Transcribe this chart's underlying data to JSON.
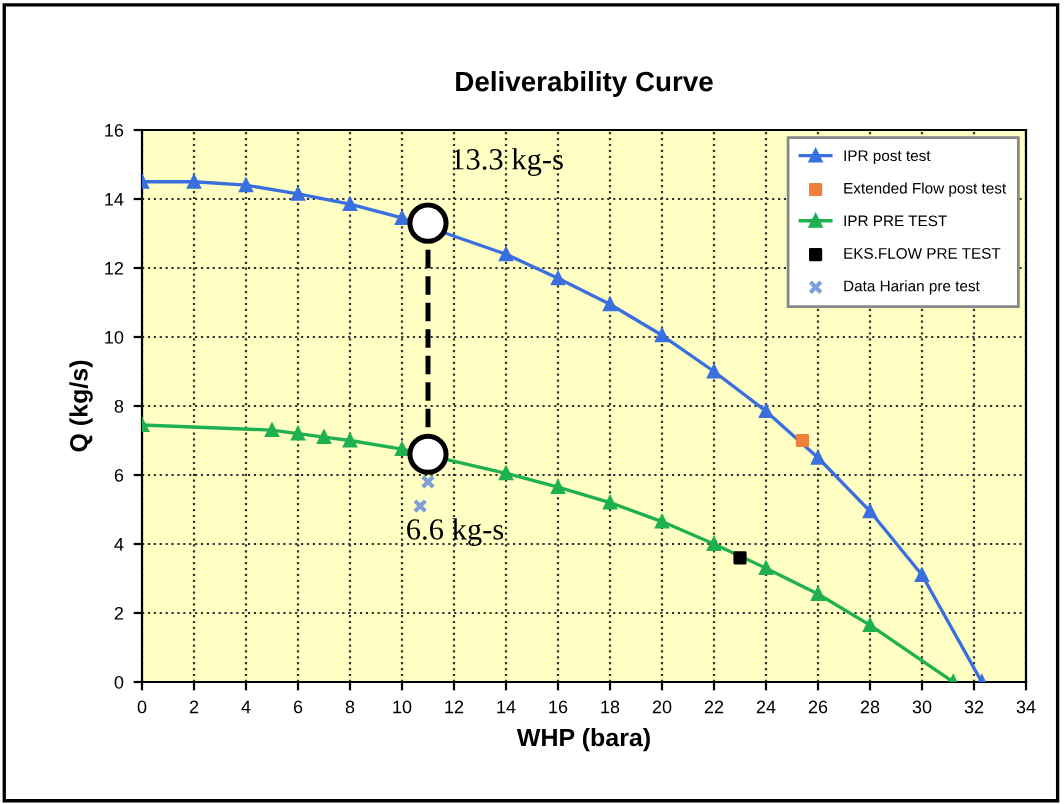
{
  "chart_data": {
    "type": "line",
    "title": "Deliverability Curve",
    "xlabel": "WHP (bara)",
    "ylabel": "Q (kg/s)",
    "xlim": [
      0,
      34
    ],
    "xticks": [
      0,
      2,
      4,
      6,
      8,
      10,
      12,
      14,
      16,
      18,
      20,
      22,
      24,
      26,
      28,
      30,
      32,
      34
    ],
    "ylim": [
      0,
      16
    ],
    "yticks": [
      0,
      2,
      4,
      6,
      8,
      10,
      12,
      14,
      16
    ],
    "grid": true,
    "legend": "top right",
    "series": [
      {
        "name": "IPR post test",
        "color": "#3a6fe0",
        "marker": "triangle",
        "x": [
          0,
          2,
          4,
          6,
          8,
          10,
          14,
          16,
          18,
          20,
          22,
          24,
          26,
          28,
          30,
          32.3
        ],
        "values": [
          14.5,
          14.5,
          14.4,
          14.15,
          13.85,
          13.45,
          12.4,
          11.7,
          10.95,
          10.05,
          9.0,
          7.85,
          6.5,
          4.95,
          3.1,
          0
        ]
      },
      {
        "name": "Extended Flow post test",
        "color": "#f07f3c",
        "marker": "square",
        "type": "scatter",
        "x": [
          25.4
        ],
        "values": [
          7.0
        ]
      },
      {
        "name": "IPR PRE TEST",
        "color": "#1fb050",
        "marker": "triangle",
        "x": [
          0,
          5,
          6,
          7,
          8,
          10,
          14,
          16,
          18,
          20,
          22,
          24,
          26,
          28,
          31.2
        ],
        "values": [
          7.45,
          7.3,
          7.2,
          7.1,
          7.0,
          6.75,
          6.05,
          5.65,
          5.2,
          4.65,
          4.0,
          3.3,
          2.55,
          1.65,
          0
        ]
      },
      {
        "name": "EKS.FLOW PRE TEST",
        "color": "#000000",
        "marker": "square",
        "type": "scatter",
        "x": [
          23
        ],
        "values": [
          3.6
        ]
      },
      {
        "name": "Data Harian pre test",
        "color": "#7f9fd8",
        "marker": "cross",
        "type": "scatter",
        "x": [
          11,
          10.7
        ],
        "values": [
          5.8,
          5.1
        ]
      },
      {
        "color": "#000000",
        "line_style": "dashed",
        "marker": "circle",
        "x": [
          11,
          11
        ],
        "values": [
          13.3,
          6.6
        ]
      }
    ],
    "annotations": [
      {
        "text": "13.3 kg-s",
        "x": 11,
        "y": 13.3
      },
      {
        "text": "6.6 kg-s",
        "x": 11,
        "y": 6.6
      }
    ]
  }
}
